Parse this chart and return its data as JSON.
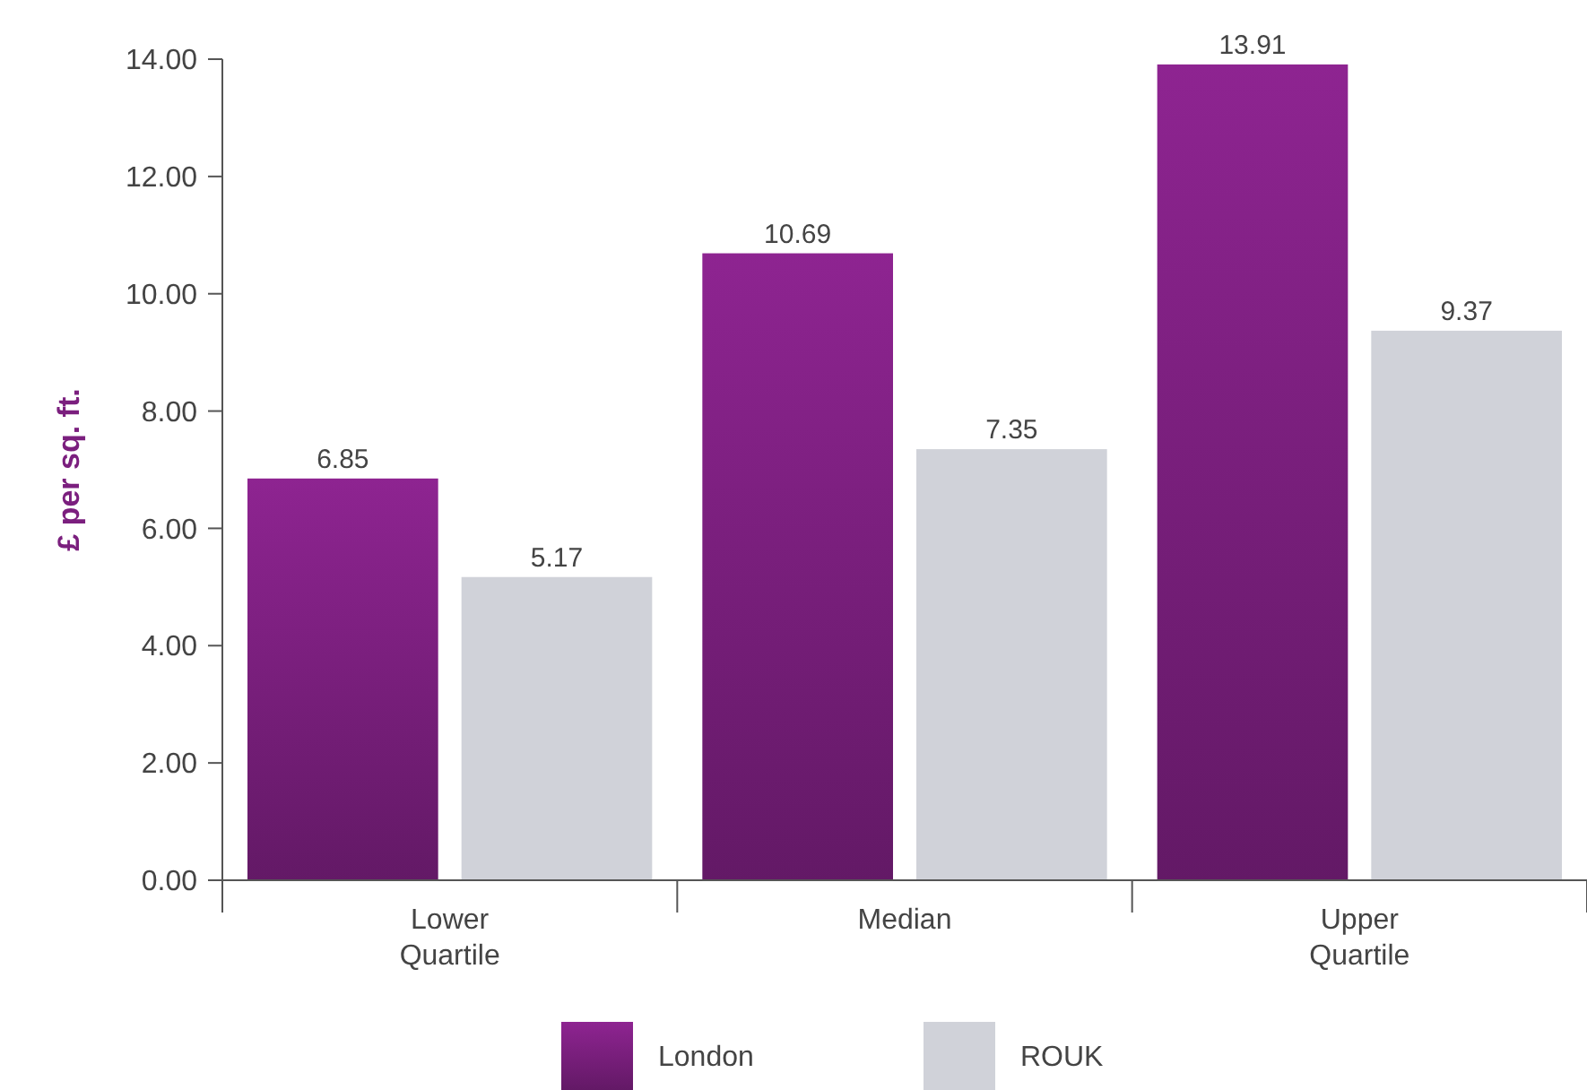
{
  "chart_data": {
    "type": "bar",
    "ylabel": "£ per sq. ft.",
    "categories": [
      "Lower Quartile",
      "Median",
      "Upper Quartile"
    ],
    "series": [
      {
        "name": "London",
        "color": "#7b1f7e",
        "values": [
          6.85,
          10.69,
          13.91
        ]
      },
      {
        "name": "ROUK",
        "color": "#d0d2d9",
        "values": [
          5.17,
          7.35,
          9.37
        ]
      }
    ],
    "ylim": [
      0,
      14
    ],
    "yticks": [
      {
        "value": 0,
        "label": "0.00"
      },
      {
        "value": 2,
        "label": "2.00"
      },
      {
        "value": 4,
        "label": "4.00"
      },
      {
        "value": 6,
        "label": "6.00"
      },
      {
        "value": 8,
        "label": "8.00"
      },
      {
        "value": 10,
        "label": "10.00"
      },
      {
        "value": 12,
        "label": "12.00"
      },
      {
        "value": 14,
        "label": "14.00"
      }
    ],
    "grid": false,
    "legend": "bottom",
    "data_labels": true
  }
}
